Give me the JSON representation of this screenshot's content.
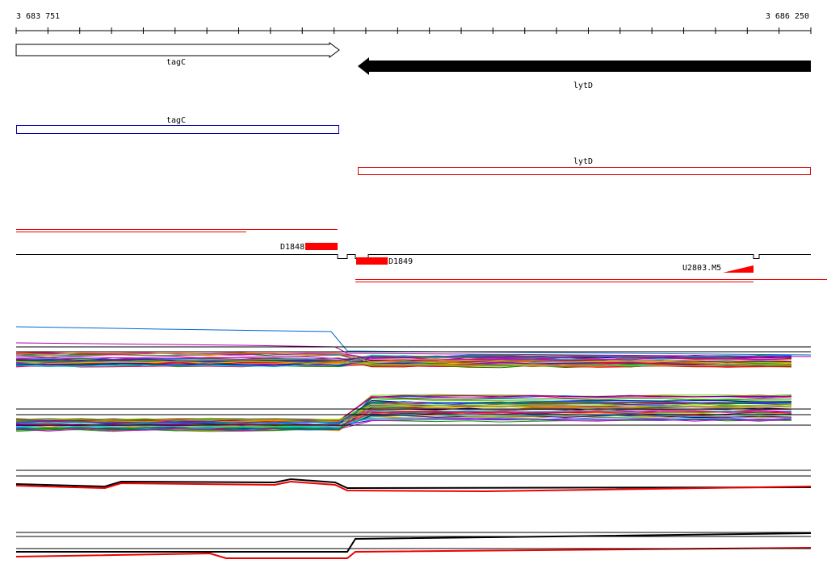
{
  "ruler": {
    "start": "3 683 751",
    "end": "3 686 250"
  },
  "genes": [
    {
      "label": "tagC"
    },
    {
      "label": "lytD"
    }
  ],
  "transcripts": [
    {
      "label": "tagC"
    },
    {
      "label": "lytD"
    }
  ],
  "features": [
    {
      "label": "D1848"
    },
    {
      "label": "D1849"
    },
    {
      "label": "U2803.M5"
    }
  ]
}
